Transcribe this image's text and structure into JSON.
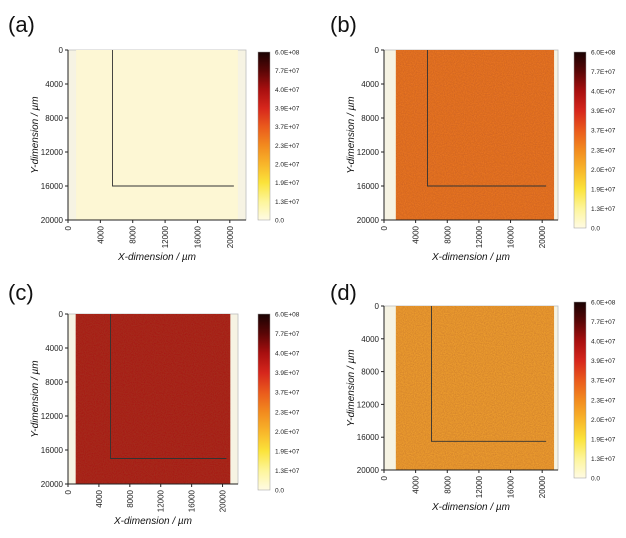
{
  "figure": {
    "background": "#ffffff",
    "colorbar_ticks": [
      "6.0E+08",
      "7.7E+07",
      "4.0E+07",
      "3.9E+07",
      "3.7E+07",
      "2.3E+07",
      "2.0E+07",
      "1.9E+07",
      "1.3E+07",
      "0.0"
    ],
    "colorbar_stops": [
      "#1a0303",
      "#5a0606",
      "#a80f0f",
      "#d6261c",
      "#ea5a1c",
      "#f28a1e",
      "#f8b52a",
      "#fbe33a",
      "#fdf59a",
      "#fffbe4"
    ]
  },
  "chart_data": [
    {
      "type": "heatmap",
      "panel_label": "(a)",
      "xlabel": "X-dimension / µm",
      "ylabel": "Y-dimension / µm",
      "x_ticks": [
        "0",
        "4000",
        "8000",
        "12000",
        "16000",
        "20000"
      ],
      "y_ticks": [
        "0",
        "4000",
        "8000",
        "12000",
        "16000",
        "20000"
      ],
      "xlim": [
        0,
        22000
      ],
      "ylim": [
        0,
        20000
      ],
      "y_reversed": true,
      "extent": {
        "x": [
          1000,
          21000
        ],
        "y": [
          0,
          20000
        ]
      },
      "fill_color": "#fdf7d4",
      "bracket": {
        "x": 5500,
        "y_end": 16000,
        "x_end": 20500
      }
    },
    {
      "type": "heatmap",
      "panel_label": "(b)",
      "xlabel": "X-dimension / µm",
      "ylabel": "Y-dimension / µm",
      "x_ticks": [
        "0",
        "4000",
        "8000",
        "12000",
        "16000",
        "20000"
      ],
      "y_ticks": [
        "0",
        "4000",
        "8000",
        "12000",
        "16000",
        "20000"
      ],
      "xlim": [
        0,
        22000
      ],
      "ylim": [
        0,
        20000
      ],
      "y_reversed": true,
      "extent": {
        "x": [
          1500,
          21500
        ],
        "y": [
          0,
          20000
        ]
      },
      "fill_color": "#f07a24",
      "bracket": {
        "x": 5500,
        "y_end": 16000,
        "x_end": 20500
      }
    },
    {
      "type": "heatmap",
      "panel_label": "(c)",
      "xlabel": "X-dimension / µm",
      "ylabel": "Y-dimension / µm",
      "x_ticks": [
        "0",
        "4000",
        "8000",
        "12000",
        "16000",
        "20000"
      ],
      "y_ticks": [
        "0",
        "4000",
        "8000",
        "12000",
        "16000",
        "20000"
      ],
      "xlim": [
        0,
        22000
      ],
      "ylim": [
        0,
        20000
      ],
      "y_reversed": true,
      "extent": {
        "x": [
          1000,
          21000
        ],
        "y": [
          0,
          20000
        ]
      },
      "fill_color": "#a81812",
      "bracket": {
        "x": 5500,
        "y_end": 17000,
        "x_end": 20500
      }
    },
    {
      "type": "heatmap",
      "panel_label": "(d)",
      "xlabel": "X-dimension / µm",
      "ylabel": "Y-dimension / µm",
      "x_ticks": [
        "0",
        "4000",
        "8000",
        "12000",
        "16000",
        "20000"
      ],
      "y_ticks": [
        "0",
        "4000",
        "8000",
        "12000",
        "16000",
        "20000"
      ],
      "xlim": [
        0,
        22000
      ],
      "ylim": [
        0,
        20000
      ],
      "y_reversed": true,
      "extent": {
        "x": [
          1500,
          21500
        ],
        "y": [
          0,
          20000
        ]
      },
      "fill_color": "#f5a532",
      "bracket": {
        "x": 6000,
        "y_end": 16500,
        "x_end": 20500
      }
    }
  ]
}
